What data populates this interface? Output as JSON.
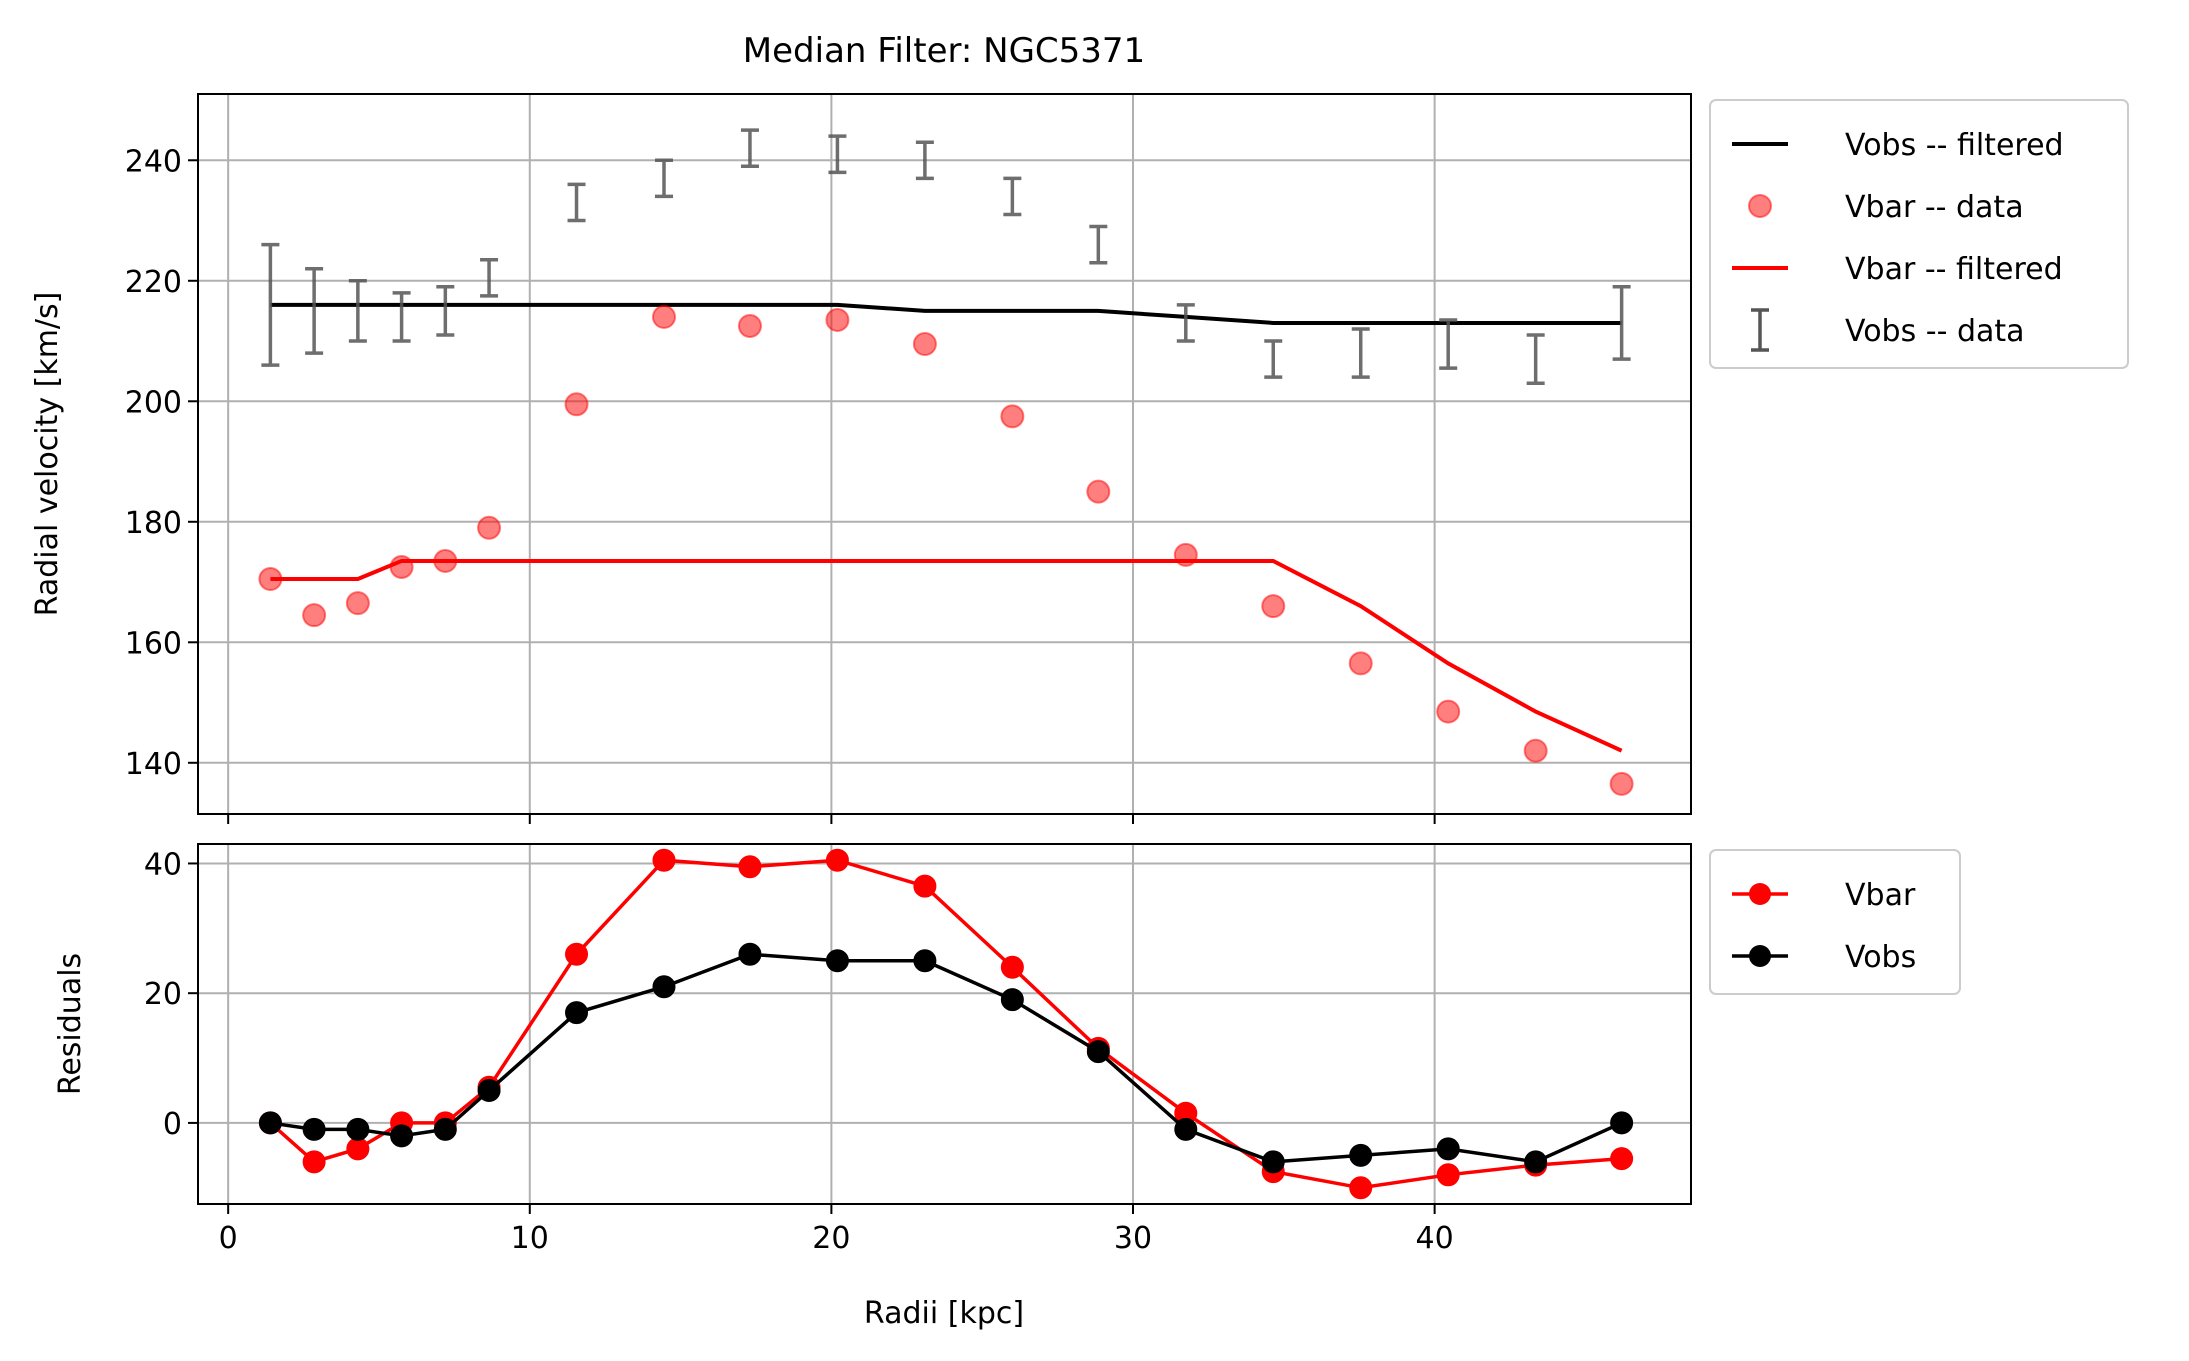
{
  "figure": {
    "title": "Median Filter: NGC5371"
  },
  "chart_data": [
    {
      "type": "line",
      "panel": "top",
      "title": "Median Filter: NGC5371",
      "xlabel": "",
      "ylabel": "Radial velocity [km/s]",
      "xlim": [
        -1,
        48.5
      ],
      "ylim": [
        131.5,
        251
      ],
      "xticks": [
        0,
        10,
        20,
        30,
        40
      ],
      "yticks": [
        140,
        160,
        180,
        200,
        220,
        240
      ],
      "grid": true,
      "legend_location": "outside-upper-right",
      "x": [
        1.4,
        2.85,
        4.3,
        5.75,
        7.2,
        8.65,
        11.55,
        14.45,
        17.3,
        20.2,
        23.1,
        26.0,
        28.85,
        31.75,
        34.65,
        37.55,
        40.45,
        43.35,
        46.2
      ],
      "series": [
        {
          "name": "Vobs -- filtered",
          "kind": "line",
          "color": "#000000",
          "values": [
            216,
            216,
            216,
            216,
            216,
            216,
            216,
            216,
            216,
            216,
            215,
            215,
            215,
            214,
            213,
            213,
            213,
            213,
            213
          ]
        },
        {
          "name": "Vbar -- data",
          "kind": "scatter",
          "color": "#ff0000",
          "values": [
            170.5,
            164.5,
            166.5,
            172.5,
            173.5,
            179,
            199.5,
            214,
            212.5,
            213.5,
            209.5,
            197.5,
            185,
            174.5,
            166,
            156.5,
            148.5,
            142,
            136.5
          ]
        },
        {
          "name": "Vbar -- filtered",
          "kind": "line",
          "color": "#ff0000",
          "values": [
            170.5,
            170.5,
            170.5,
            173.5,
            173.5,
            173.5,
            173.5,
            173.5,
            173.5,
            173.5,
            173.5,
            173.5,
            173.5,
            173.5,
            173.5,
            166,
            156.5,
            148.5,
            142
          ]
        },
        {
          "name": "Vobs -- data",
          "kind": "errorbar",
          "color": "#555555",
          "values": [
            216,
            215,
            215,
            214,
            215,
            220.5,
            233,
            237,
            242,
            241,
            240,
            234,
            226,
            213,
            207,
            208,
            209.5,
            207,
            213
          ],
          "errors": [
            10,
            7,
            5,
            4,
            4,
            3,
            3,
            3,
            3,
            3,
            3,
            3,
            3,
            3,
            3,
            4,
            4,
            4,
            6
          ]
        }
      ]
    },
    {
      "type": "line",
      "panel": "bottom",
      "title": "",
      "xlabel": "Radii [kpc]",
      "ylabel": "Residuals",
      "xlim": [
        -1,
        48.5
      ],
      "ylim": [
        -12.5,
        43
      ],
      "xticks": [
        0,
        10,
        20,
        30,
        40
      ],
      "yticks": [
        0,
        20,
        40
      ],
      "grid": true,
      "legend_location": "outside-upper-right",
      "x": [
        1.4,
        2.85,
        4.3,
        5.75,
        7.2,
        8.65,
        11.55,
        14.45,
        17.3,
        20.2,
        23.1,
        26.0,
        28.85,
        31.75,
        34.65,
        37.55,
        40.45,
        43.35,
        46.2
      ],
      "series": [
        {
          "name": "Vbar",
          "color": "#ff0000",
          "values": [
            0,
            -6,
            -4,
            0,
            0,
            5.5,
            26,
            40.5,
            39.5,
            40.5,
            36.5,
            24,
            11.5,
            1.5,
            -7.5,
            -10,
            -8,
            -6.5,
            -5.5
          ]
        },
        {
          "name": "Vobs",
          "color": "#000000",
          "values": [
            0,
            -1,
            -1,
            -2,
            -1,
            5,
            17,
            21,
            26,
            25,
            25,
            19,
            11,
            -1,
            -6,
            -5,
            -4,
            -6,
            0
          ]
        }
      ]
    }
  ]
}
